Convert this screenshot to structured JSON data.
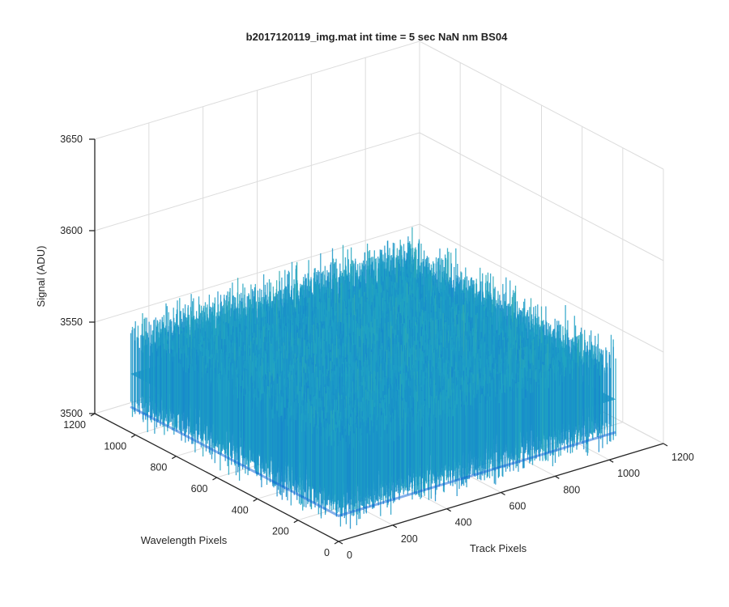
{
  "chart_data": {
    "type": "surface",
    "title": "b2017120119_img.mat int time = 5 sec  NaN nm BS04",
    "xlabel": "Track Pixels",
    "ylabel": "Wavelength Pixels",
    "zlabel": "Signal (ADU)",
    "xlim": [
      0,
      1200
    ],
    "ylim": [
      0,
      1200
    ],
    "zlim": [
      3500,
      3650
    ],
    "xticks": [
      "0",
      "200",
      "400",
      "600",
      "800",
      "1000",
      "1200"
    ],
    "yticks": [
      "0",
      "200",
      "400",
      "600",
      "800",
      "1000",
      "1200"
    ],
    "zticks": [
      "3500",
      "3550",
      "3600",
      "3650"
    ],
    "data_extent": {
      "track_pixels": [
        0,
        1024
      ],
      "wavelength_pixels": [
        0,
        1024
      ]
    },
    "signal_mean": 3532,
    "signal_noise_range": [
      3505,
      3625
    ],
    "colormap": "parula",
    "colors": {
      "low": "#0a5fd6",
      "mid": "#1fa3c4",
      "high": "#62c27a",
      "peak": "#d9d93a"
    },
    "grid": true,
    "box": false,
    "view": "3d-isometric"
  }
}
